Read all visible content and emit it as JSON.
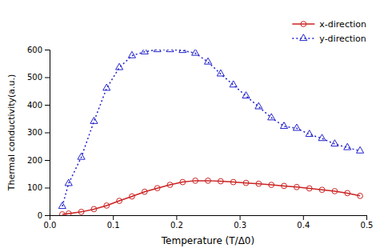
{
  "chart_data": {
    "type": "line",
    "xlabel": "Temperature (T/Δ0)",
    "ylabel": "Thermal conductivity(a.u.)",
    "x": [
      0.02,
      0.03,
      0.05,
      0.07,
      0.09,
      0.11,
      0.13,
      0.15,
      0.17,
      0.19,
      0.21,
      0.23,
      0.25,
      0.27,
      0.29,
      0.31,
      0.33,
      0.35,
      0.37,
      0.39,
      0.41,
      0.43,
      0.45,
      0.47,
      0.49
    ],
    "series": [
      {
        "name": "x-direction",
        "color": "#CC2222",
        "marker": "circle",
        "line_style": "solid",
        "values": [
          3,
          6,
          12,
          22,
          35,
          52,
          68,
          85,
          98,
          110,
          120,
          125,
          125,
          123,
          120,
          117,
          114,
          110,
          106,
          102,
          97,
          92,
          87,
          80,
          70
        ]
      },
      {
        "name": "y-direction",
        "color": "#2222CC",
        "marker": "triangle",
        "line_style": "dotted",
        "values": [
          32,
          115,
          210,
          340,
          460,
          535,
          578,
          592,
          600,
          600,
          597,
          587,
          555,
          512,
          472,
          432,
          393,
          353,
          322,
          315,
          293,
          278,
          258,
          245,
          233
        ]
      }
    ],
    "xlim": [
      0,
      0.5
    ],
    "ylim": [
      0,
      600
    ],
    "xticks": [
      {
        "value": 0,
        "label": "0.0"
      },
      0.1,
      0.2,
      0.3,
      0.4,
      0.5
    ],
    "yticks": [
      0,
      100,
      200,
      300,
      400,
      500,
      600
    ],
    "grid": false,
    "legend": "upper right"
  }
}
